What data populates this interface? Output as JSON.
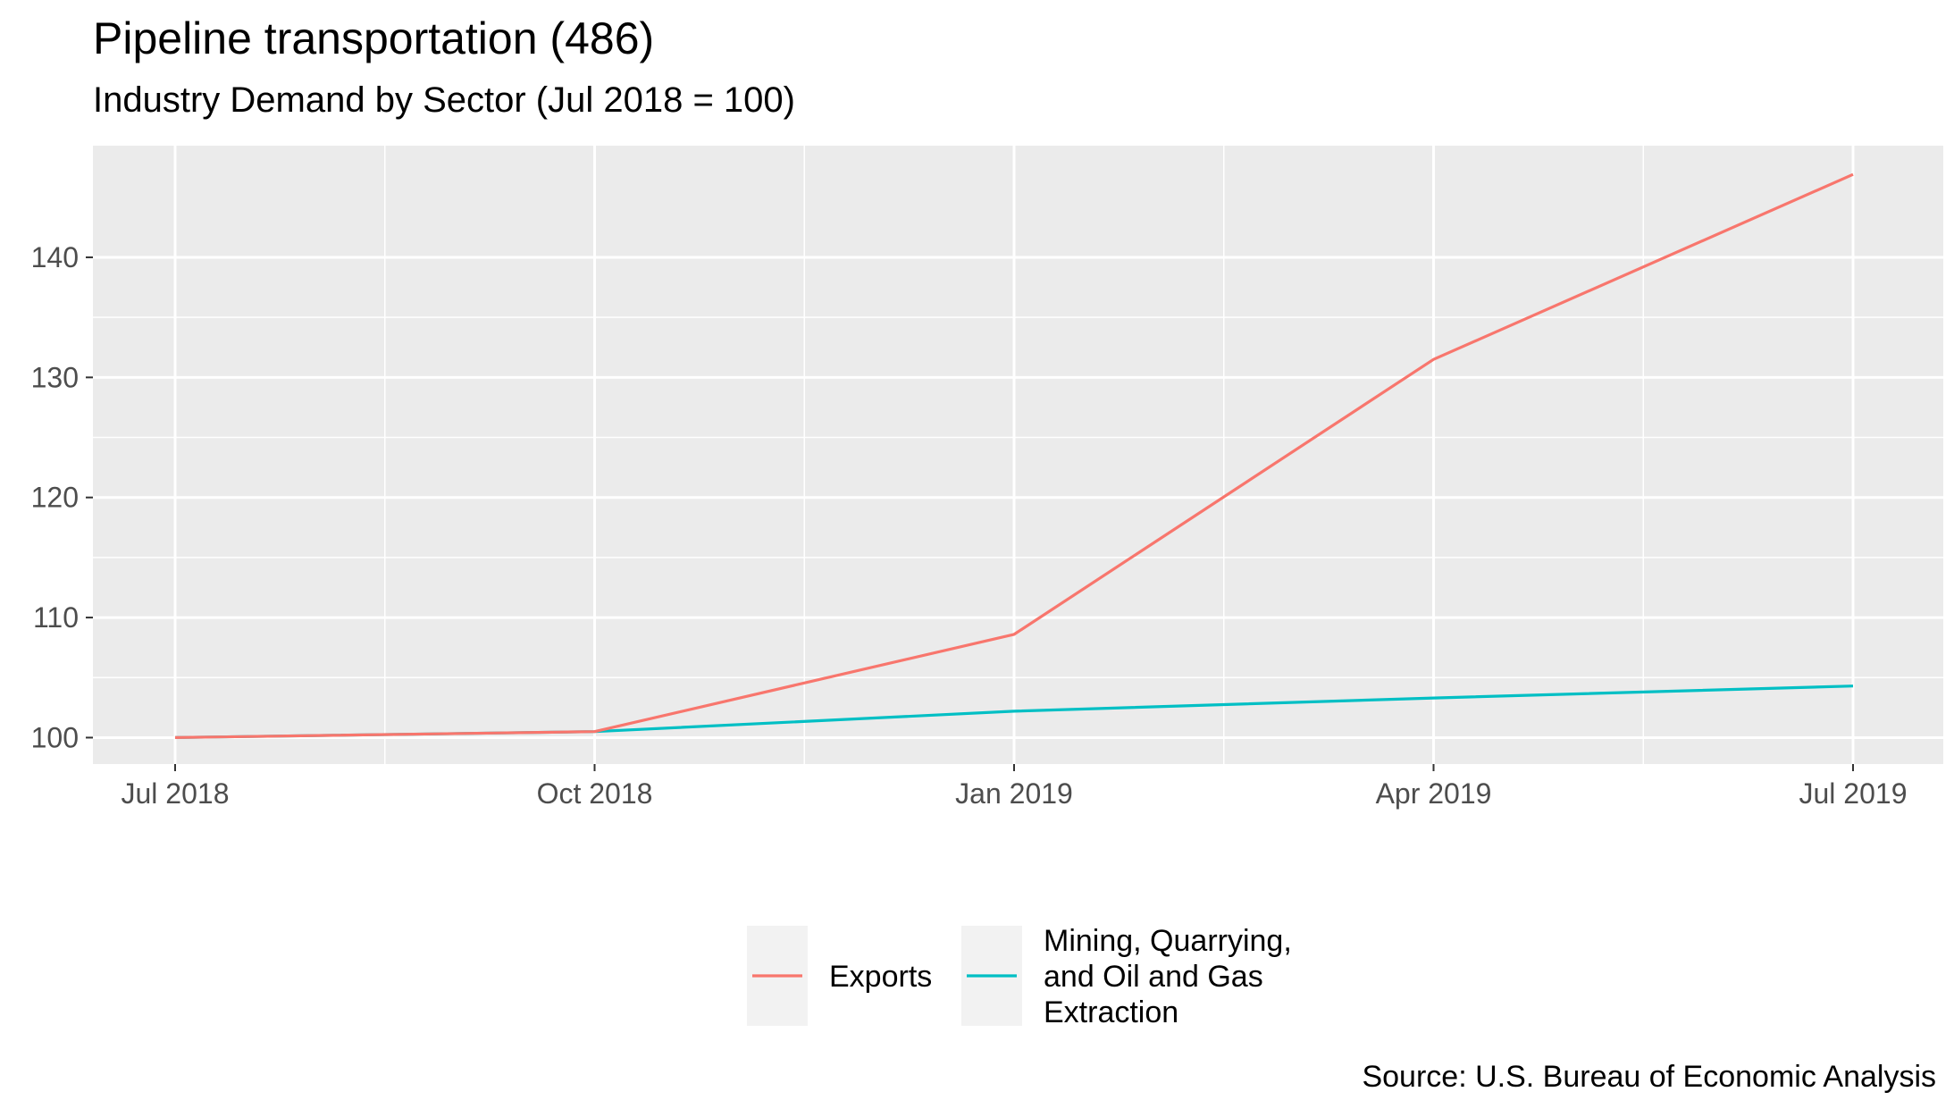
{
  "chart_data": {
    "type": "line",
    "title": "Pipeline transportation (486)",
    "subtitle": "Industry Demand by Sector (Jul 2018 = 100)",
    "caption": "Source: U.S. Bureau of Economic Analysis",
    "xlabel": "",
    "ylabel": "",
    "x": [
      "Jul 2018",
      "Oct 2018",
      "Jan 2019",
      "Apr 2019",
      "Jul 2019"
    ],
    "x_ticks": [
      "Jul 2018",
      "Oct 2018",
      "Jan 2019",
      "Apr 2019",
      "Jul 2019"
    ],
    "y_ticks": [
      100,
      110,
      120,
      130,
      140
    ],
    "ylim": [
      97.8,
      149.3
    ],
    "grid": true,
    "legend_position": "bottom",
    "series": [
      {
        "name": "Exports",
        "color": "#F8766D",
        "values": [
          100.0,
          100.5,
          108.6,
          131.5,
          146.9
        ]
      },
      {
        "name": "Mining, Quarrying, and Oil and Gas Extraction",
        "color": "#00BFC4",
        "values": [
          100.0,
          100.5,
          102.2,
          103.3,
          104.3
        ]
      }
    ],
    "legend_lines": [
      [
        "Exports"
      ],
      [
        "Mining, Quarrying,",
        "and Oil and Gas",
        "Extraction"
      ]
    ]
  }
}
